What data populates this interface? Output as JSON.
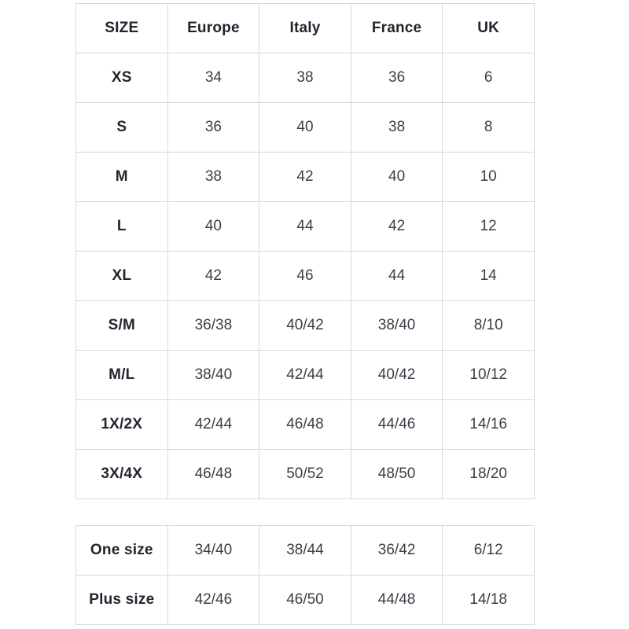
{
  "colors": {
    "table_border": "#d8d8d8",
    "header_text": "#24242e",
    "cell_text": "#3d3d47",
    "background": "#ffffff"
  },
  "chart_data": [
    {
      "type": "table",
      "columns": [
        "SIZE",
        "Europe",
        "Italy",
        "France",
        "UK"
      ],
      "rows": [
        [
          "XS",
          "34",
          "38",
          "36",
          "6"
        ],
        [
          "S",
          "36",
          "40",
          "38",
          "8"
        ],
        [
          "M",
          "38",
          "42",
          "40",
          "10"
        ],
        [
          "L",
          "40",
          "44",
          "42",
          "12"
        ],
        [
          "XL",
          "42",
          "46",
          "44",
          "14"
        ],
        [
          "S/M",
          "36/38",
          "40/42",
          "38/40",
          "8/10"
        ],
        [
          "M/L",
          "38/40",
          "42/44",
          "40/42",
          "10/12"
        ],
        [
          "1X/2X",
          "42/44",
          "46/48",
          "44/46",
          "14/16"
        ],
        [
          "3X/4X",
          "46/48",
          "50/52",
          "48/50",
          "18/20"
        ]
      ]
    },
    {
      "type": "table",
      "columns": [],
      "rows": [
        [
          "One size",
          "34/40",
          "38/44",
          "36/42",
          "6/12"
        ],
        [
          "Plus size",
          "42/46",
          "46/50",
          "44/48",
          "14/18"
        ]
      ]
    }
  ]
}
